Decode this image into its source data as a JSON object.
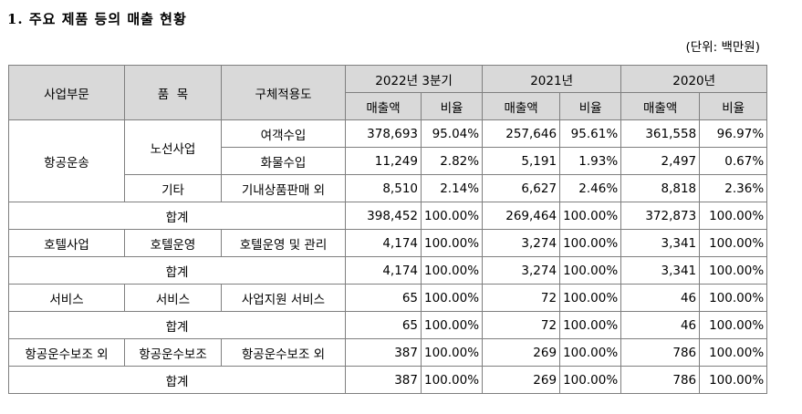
{
  "heading": "1. 주요 제품 등의 매출 현황",
  "unit": "(단위: 백만원)",
  "header": {
    "segment": "사업부문",
    "item": "품  목",
    "usage": "구체적용도",
    "periods": [
      "2022년 3분기",
      "2021년",
      "2020년"
    ],
    "sales": "매출액",
    "ratio": "비율"
  },
  "rows": [
    {
      "segment": "항공운송",
      "item": "노선사업",
      "usage": "여객수입",
      "v": [
        "378,693",
        "95.04%",
        "257,646",
        "95.61%",
        "361,558",
        "96.97%"
      ]
    },
    {
      "usage": "화물수입",
      "v": [
        "11,249",
        "2.82%",
        "5,191",
        "1.93%",
        "2,497",
        "0.67%"
      ]
    },
    {
      "item": "기타",
      "usage": "기내상품판매 외",
      "v": [
        "8,510",
        "2.14%",
        "6,627",
        "2.46%",
        "8,818",
        "2.36%"
      ]
    },
    {
      "total": "합계",
      "v": [
        "398,452",
        "100.00%",
        "269,464",
        "100.00%",
        "372,873",
        "100.00%"
      ]
    },
    {
      "segment": "호텔사업",
      "item": "호텔운영",
      "usage": "호텔운영 및 관리",
      "v": [
        "4,174",
        "100.00%",
        "3,274",
        "100.00%",
        "3,341",
        "100.00%"
      ]
    },
    {
      "total": "합계",
      "v": [
        "4,174",
        "100.00%",
        "3,274",
        "100.00%",
        "3,341",
        "100.00%"
      ]
    },
    {
      "segment": "서비스",
      "item": "서비스",
      "usage": "사업지원 서비스",
      "v": [
        "65",
        "100.00%",
        "72",
        "100.00%",
        "46",
        "100.00%"
      ]
    },
    {
      "total": "합계",
      "v": [
        "65",
        "100.00%",
        "72",
        "100.00%",
        "46",
        "100.00%"
      ]
    },
    {
      "segment": "항공운수보조 외",
      "item": "항공운수보조",
      "usage": "항공운수보조 외",
      "v": [
        "387",
        "100.00%",
        "269",
        "100.00%",
        "786",
        "100.00%"
      ]
    },
    {
      "total": "합계",
      "v": [
        "387",
        "100.00%",
        "269",
        "100.00%",
        "786",
        "100.00%"
      ]
    }
  ]
}
